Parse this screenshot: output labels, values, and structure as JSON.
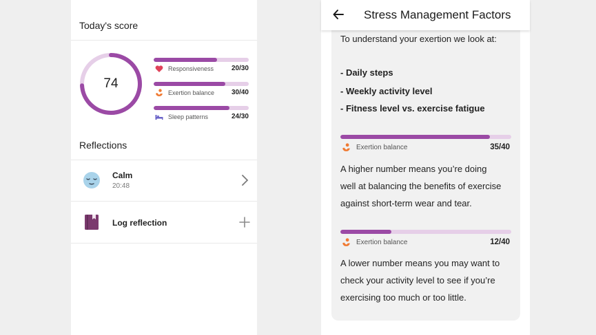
{
  "colors": {
    "accent": "#9b4aa5",
    "track": "#e6cfe8",
    "panel_bg": "#ffffff",
    "card_bg": "#f1f1f1",
    "page_bg": "#efefef"
  },
  "score_screen": {
    "today_title": "Today's score",
    "score": "74",
    "score_fraction": 0.74,
    "metrics": [
      {
        "label": "Responsiveness",
        "score": "20/30",
        "fraction": 0.667,
        "icon": "heart-icon",
        "color": "#e0435a"
      },
      {
        "label": "Exertion balance",
        "score": "30/40",
        "fraction": 0.75,
        "icon": "exertion-icon",
        "color": "#f07a32"
      },
      {
        "label": "Sleep patterns",
        "score": "24/30",
        "fraction": 0.8,
        "icon": "bed-icon",
        "color": "#6a63c8"
      }
    ],
    "reflections_title": "Reflections",
    "reflections": [
      {
        "name": "Calm",
        "time": "20:48",
        "icon": "calm-face-icon",
        "action_icon": "chevron-right-icon"
      },
      {
        "name": "Log reflection",
        "icon": "journal-icon",
        "action_icon": "plus-icon"
      }
    ]
  },
  "factors_screen": {
    "title": "Stress Management Factors",
    "back_icon": "back-arrow-icon",
    "intro": "To understand your exertion we look at:",
    "bullets": [
      "- Daily steps",
      "- Weekly activity level",
      "- Fitness level vs. exercise fatigue"
    ],
    "metric_high": {
      "label": "Exertion balance",
      "score": "35/40",
      "fraction": 0.875,
      "icon": "exertion-icon"
    },
    "high_lines": [
      "A higher number means you’re doing",
      "well at balancing the benefits of exercise",
      "against short-term wear and tear."
    ],
    "metric_low": {
      "label": "Exertion balance",
      "score": "12/40",
      "fraction": 0.3,
      "icon": "exertion-icon"
    },
    "low_lines": [
      "A lower number means you may want to",
      "check your activity level to see if you’re",
      "exercising too much or too little."
    ]
  }
}
